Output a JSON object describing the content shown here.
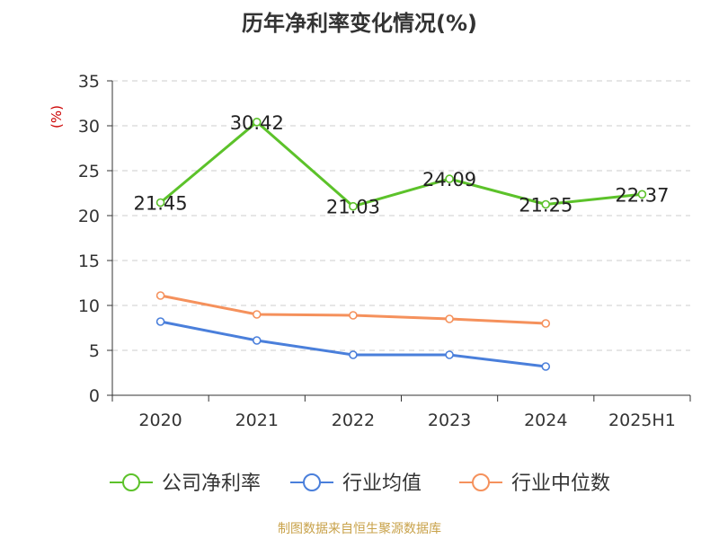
{
  "chart_data": {
    "type": "line",
    "title": "历年净利率变化情况(%)",
    "ylabel": "(%)",
    "categories": [
      "2020",
      "2021",
      "2022",
      "2023",
      "2024",
      "2025H1"
    ],
    "ylim": [
      0,
      35
    ],
    "yticks": [
      "0",
      "5",
      "10",
      "15",
      "20",
      "25",
      "30",
      "35"
    ],
    "grid": true,
    "legend_position": "bottom",
    "series": [
      {
        "name": "公司净利率",
        "color": "#5cc22a",
        "values": [
          21.45,
          30.42,
          21.03,
          24.09,
          21.25,
          22.37
        ],
        "labels": [
          "21.45",
          "30.42",
          "21.03",
          "24.09",
          "21.25",
          "22.37"
        ]
      },
      {
        "name": "行业均值",
        "color": "#4a7fdb",
        "values": [
          8.2,
          6.1,
          4.5,
          4.5,
          3.2,
          null
        ]
      },
      {
        "name": "行业中位数",
        "color": "#f5915c",
        "values": [
          11.1,
          9.0,
          8.9,
          8.5,
          8.0,
          null
        ]
      }
    ]
  },
  "source": "制图数据来自恒生聚源数据库"
}
